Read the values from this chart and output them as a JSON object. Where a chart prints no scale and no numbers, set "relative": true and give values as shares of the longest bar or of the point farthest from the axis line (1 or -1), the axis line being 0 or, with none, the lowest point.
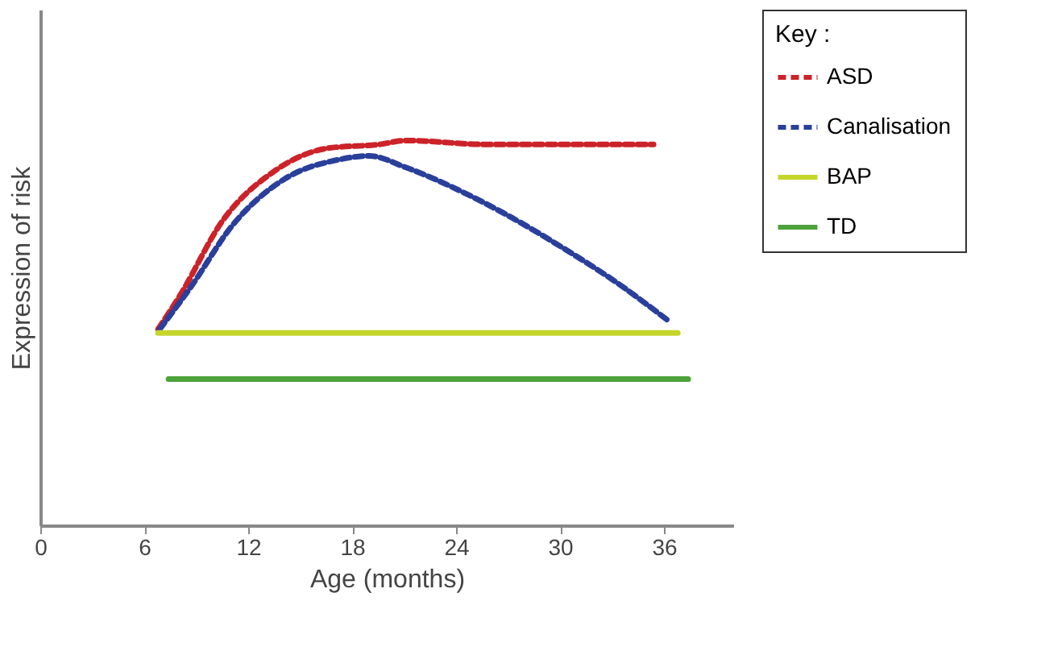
{
  "chart_data": {
    "type": "line",
    "xlabel": "Age (months)",
    "ylabel": "Expression of risk",
    "legend_title": "Key :",
    "legend": "right",
    "grid": false,
    "relative": true,
    "marker": "none",
    "xlim": [
      0,
      40
    ],
    "xticks": [
      0,
      6,
      12,
      18,
      24,
      30,
      36
    ],
    "series": [
      {
        "name": "ASD",
        "color": "#cc2229",
        "line_style": "dashed",
        "x": [
          6.8,
          8.1,
          10.5,
          13.5,
          16.6,
          19.6,
          21.1,
          25.7,
          35.4
        ],
        "values": [
          0.51,
          0.6,
          0.79,
          0.92,
          0.98,
          0.99,
          1.0,
          0.99,
          0.99
        ]
      },
      {
        "name": "Canalisation",
        "color": "#2a3f9a",
        "line_style": "dashed",
        "x": [
          6.9,
          8.7,
          11.1,
          14.1,
          17.2,
          19.0,
          21.1,
          24.2,
          27.2,
          30.2,
          33.3,
          36.3
        ],
        "values": [
          0.51,
          0.62,
          0.78,
          0.9,
          0.95,
          0.96,
          0.93,
          0.87,
          0.8,
          0.72,
          0.63,
          0.53
        ]
      },
      {
        "name": "BAP",
        "color": "#c5d62b",
        "line_style": "solid",
        "x": [
          6.8,
          36.8
        ],
        "values": [
          0.5,
          0.5
        ]
      },
      {
        "name": "TD",
        "color": "#4da33a",
        "line_style": "solid",
        "x": [
          7.4,
          37.4
        ],
        "values": [
          0.38,
          0.38
        ]
      }
    ]
  }
}
